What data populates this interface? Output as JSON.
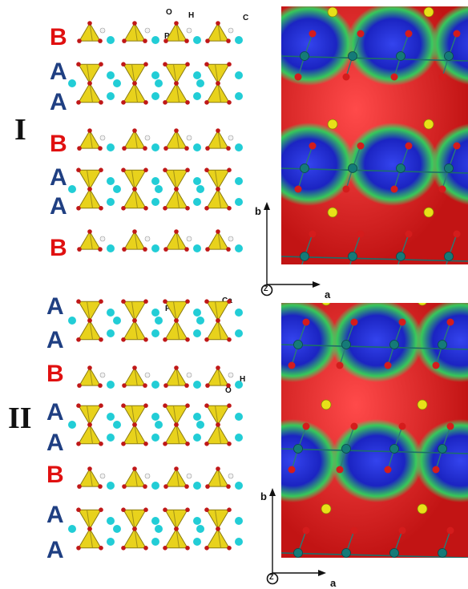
{
  "panels": [
    {
      "id": "I",
      "label": "I",
      "layers": [
        "B",
        "A",
        "A",
        "B",
        "A",
        "A",
        "B"
      ],
      "atom_labels": {
        "o": "O",
        "h": "H",
        "po4": "PO₄",
        "ca": "C"
      }
    },
    {
      "id": "II",
      "label": "II",
      "layers": [
        "A",
        "A",
        "B",
        "A",
        "A",
        "B",
        "A",
        "A"
      ],
      "atom_labels": {
        "po4": "PO₄",
        "ca": "Ca",
        "o": "O",
        "h": "H"
      }
    }
  ],
  "axes": {
    "b": "b",
    "a": "a",
    "z": "Z"
  },
  "colors": {
    "layer_a": "#1f3f82",
    "layer_b": "#e01010",
    "tetrahedron": "#e8d21c",
    "oxygen": "#c01818",
    "calcium": "#22cdd6",
    "hydrogen": "#f2f2f2",
    "surface_red": "#e22222",
    "surface_blue": "#2030d0",
    "surface_green": "#40d860"
  }
}
